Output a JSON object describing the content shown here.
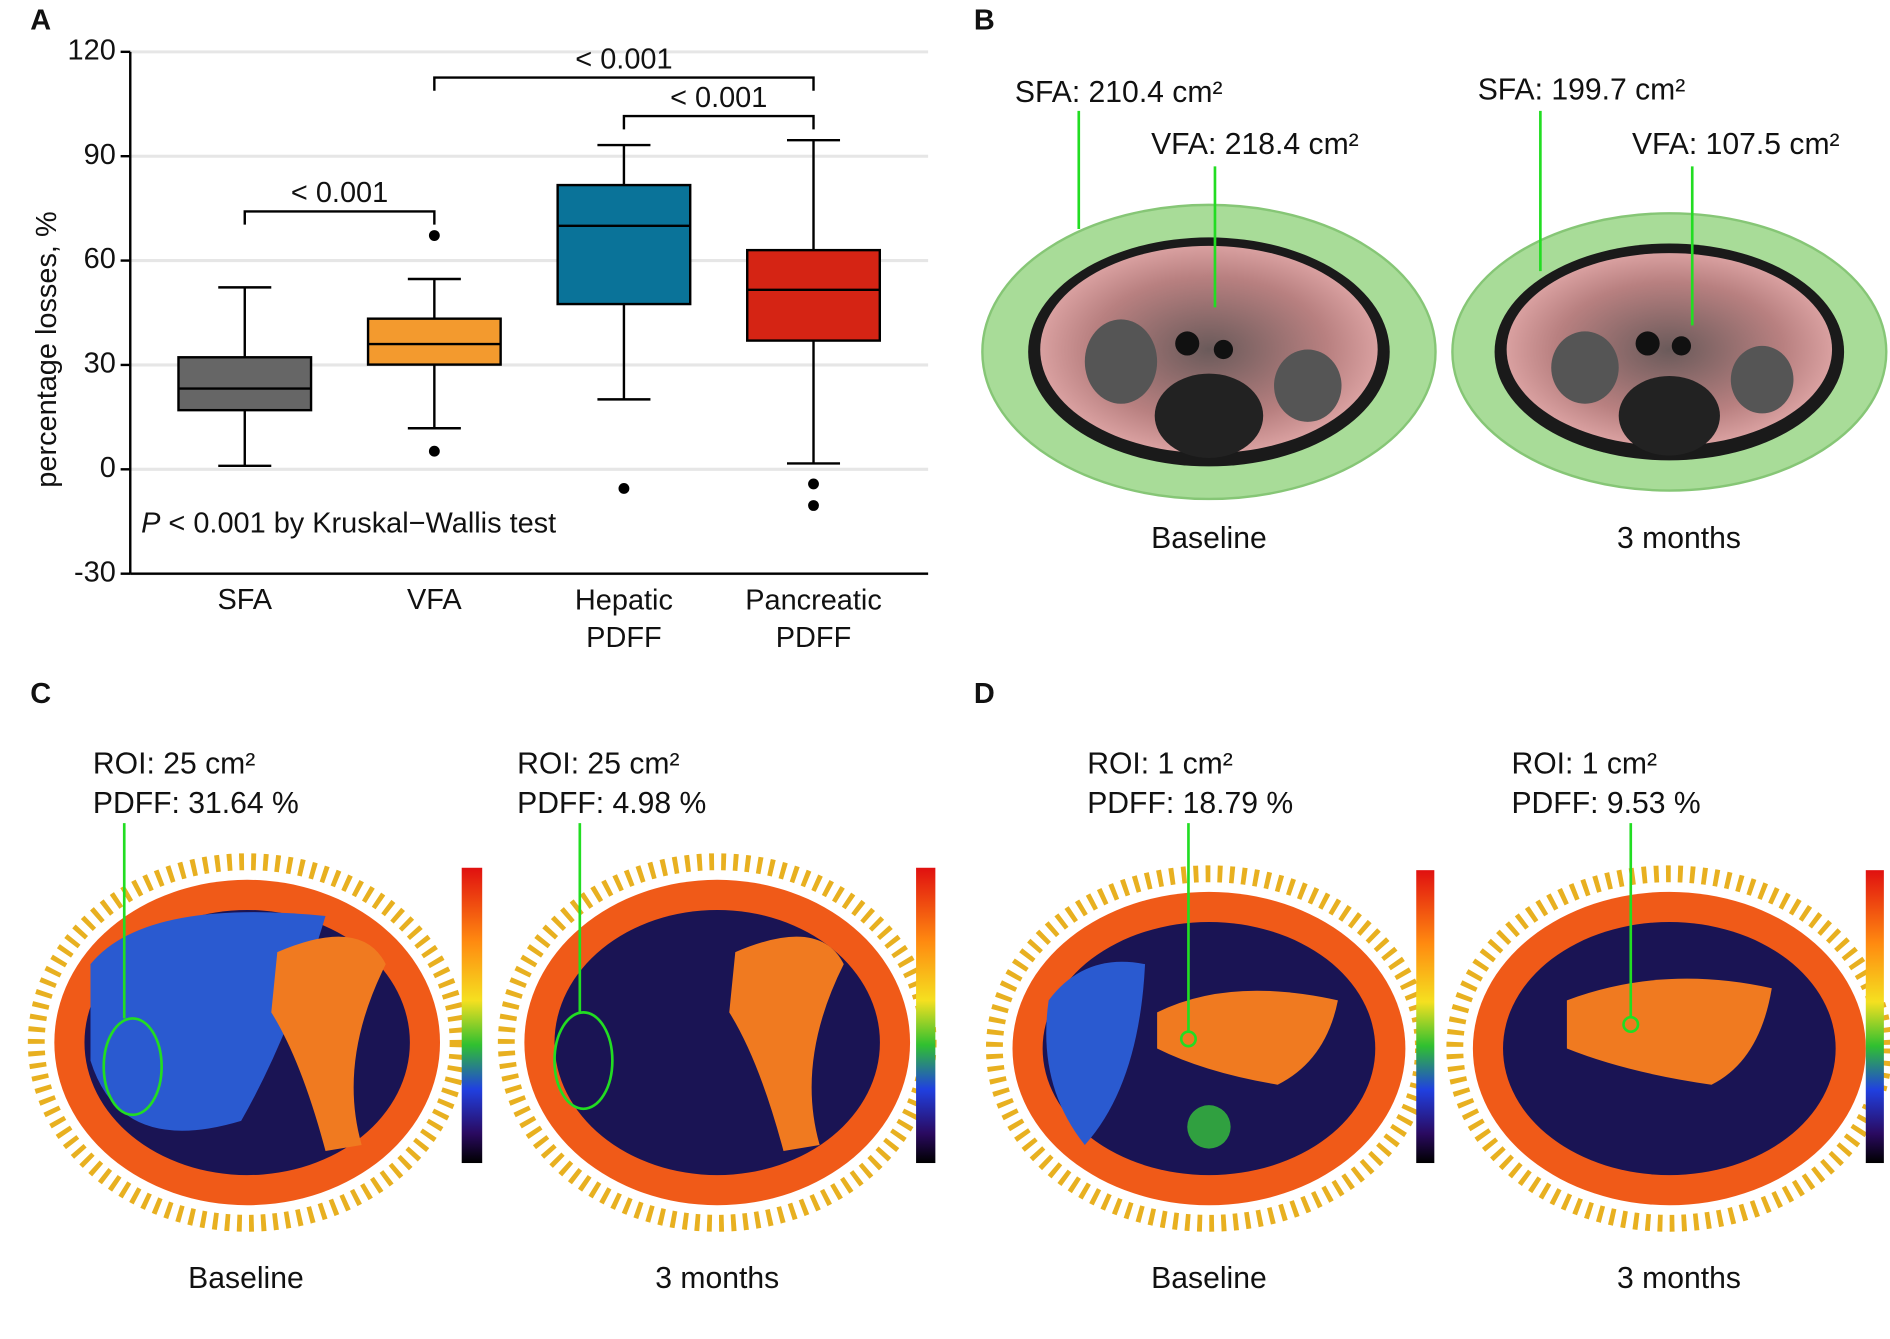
{
  "chart_data": {
    "type": "box",
    "panel_label": "A",
    "annotation": "P < 0.001 by Kruskal−Wallis test",
    "y_label": "percentage losses, %",
    "categories": [
      "SFA",
      "VFA",
      "Hepatic PDFF",
      "Pancreatic PDFF"
    ],
    "colors": [
      "#666666",
      "#f39a2e",
      "#0a7399",
      "#d52414"
    ],
    "boxes": [
      {
        "whisker_low": 1,
        "q1": 17,
        "median": 23.2,
        "q3": 32.2,
        "whisker_high": 52.3,
        "outliers": []
      },
      {
        "whisker_low": 11.8,
        "q1": 30.1,
        "median": 36,
        "q3": 43.3,
        "whisker_high": 54.7,
        "outliers": [
          67.2,
          5.2
        ]
      },
      {
        "whisker_low": 20.1,
        "q1": 47.5,
        "median": 70,
        "q3": 81.7,
        "whisker_high": 93.2,
        "outliers": [
          -5.5
        ]
      },
      {
        "whisker_low": 1.7,
        "q1": 37,
        "median": 51.6,
        "q3": 63,
        "whisker_high": 94.6,
        "outliers": [
          -4.2,
          -10.4
        ]
      }
    ],
    "comparisons": [
      {
        "from": 0,
        "to": 1,
        "label": "< 0.001"
      },
      {
        "from": 2,
        "to": 3,
        "label": "< 0.001"
      },
      {
        "from": 1,
        "to": 3,
        "label": "< 0.001"
      }
    ],
    "ylim": [
      -30,
      120
    ],
    "yticks": [
      -30,
      0,
      30,
      60,
      90,
      120
    ],
    "grid": true
  },
  "panel_b": {
    "label": "B",
    "images": [
      {
        "caption": "Baseline",
        "annotations": [
          "SFA: 210.4 cm²",
          "VFA: 218.4 cm²"
        ]
      },
      {
        "caption": "3 months",
        "annotations": [
          "SFA: 199.7 cm²",
          "VFA: 107.5 cm²"
        ]
      }
    ]
  },
  "panel_c": {
    "label": "C",
    "images": [
      {
        "caption": "Baseline",
        "annotations": [
          "ROI: 25 cm²",
          "PDFF: 31.64 %"
        ]
      },
      {
        "caption": "3 months",
        "annotations": [
          "ROI: 25 cm²",
          "PDFF: 4.98 %"
        ]
      }
    ]
  },
  "panel_d": {
    "label": "D",
    "images": [
      {
        "caption": "Baseline",
        "annotations": [
          "ROI: 1 cm²",
          "PDFF: 18.79 %"
        ]
      },
      {
        "caption": "3 months",
        "annotations": [
          "ROI: 1 cm²",
          "PDFF: 9.53 %"
        ]
      }
    ]
  }
}
